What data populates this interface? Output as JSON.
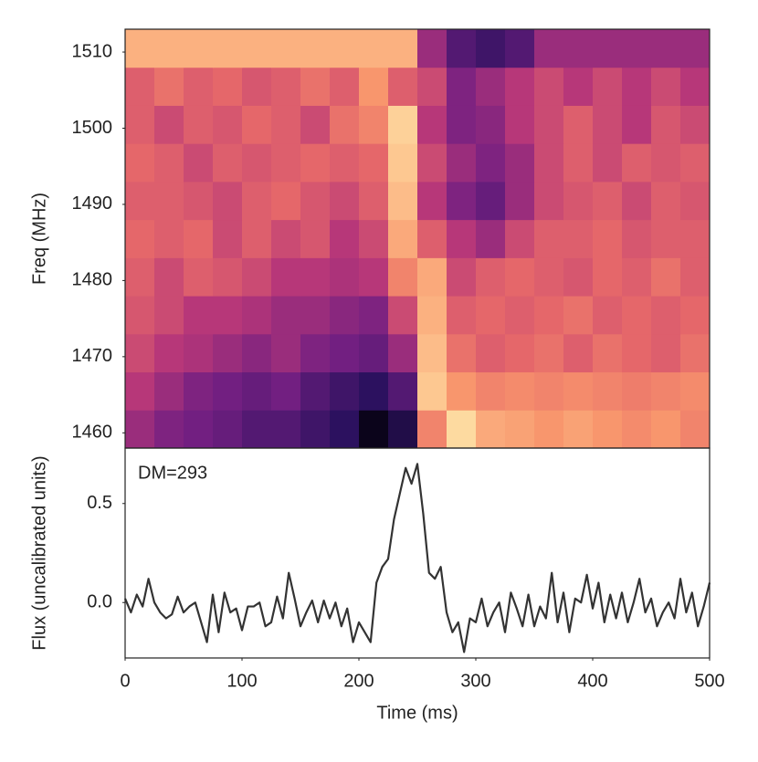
{
  "chart_data": [
    {
      "type": "heatmap",
      "ylabel": "Freq (MHz)",
      "x_bins": [
        0,
        25,
        50,
        75,
        100,
        125,
        150,
        175,
        200,
        225,
        250,
        275,
        300,
        325,
        350,
        375,
        400,
        425,
        450,
        475,
        500
      ],
      "y_bins": [
        1458,
        1463,
        1468,
        1473,
        1478,
        1483,
        1488,
        1493,
        1498,
        1503,
        1508,
        1513
      ],
      "z": [
        [
          0.45,
          0.4,
          0.38,
          0.35,
          0.3,
          0.3,
          0.25,
          0.2,
          0.05,
          0.15,
          0.7,
          0.92,
          0.8,
          0.78,
          0.75,
          0.78,
          0.75,
          0.72,
          0.75,
          0.7
        ],
        [
          0.5,
          0.45,
          0.4,
          0.38,
          0.35,
          0.38,
          0.3,
          0.25,
          0.2,
          0.3,
          0.88,
          0.75,
          0.7,
          0.72,
          0.7,
          0.72,
          0.7,
          0.68,
          0.7,
          0.72
        ],
        [
          0.55,
          0.5,
          0.48,
          0.45,
          0.42,
          0.45,
          0.4,
          0.38,
          0.35,
          0.45,
          0.85,
          0.65,
          0.6,
          0.62,
          0.65,
          0.6,
          0.65,
          0.62,
          0.6,
          0.65
        ],
        [
          0.58,
          0.55,
          0.5,
          0.5,
          0.48,
          0.45,
          0.45,
          0.42,
          0.4,
          0.55,
          0.82,
          0.6,
          0.62,
          0.6,
          0.62,
          0.65,
          0.6,
          0.62,
          0.6,
          0.62
        ],
        [
          0.6,
          0.55,
          0.6,
          0.58,
          0.55,
          0.5,
          0.5,
          0.48,
          0.5,
          0.7,
          0.8,
          0.55,
          0.6,
          0.62,
          0.6,
          0.58,
          0.62,
          0.6,
          0.65,
          0.6
        ],
        [
          0.62,
          0.6,
          0.62,
          0.55,
          0.6,
          0.55,
          0.58,
          0.5,
          0.55,
          0.8,
          0.6,
          0.5,
          0.45,
          0.55,
          0.6,
          0.6,
          0.62,
          0.58,
          0.6,
          0.6
        ],
        [
          0.6,
          0.6,
          0.58,
          0.55,
          0.6,
          0.62,
          0.58,
          0.55,
          0.6,
          0.85,
          0.5,
          0.4,
          0.35,
          0.45,
          0.55,
          0.58,
          0.6,
          0.55,
          0.6,
          0.58
        ],
        [
          0.62,
          0.6,
          0.55,
          0.6,
          0.58,
          0.6,
          0.62,
          0.6,
          0.62,
          0.88,
          0.55,
          0.45,
          0.4,
          0.45,
          0.55,
          0.6,
          0.55,
          0.6,
          0.58,
          0.6
        ],
        [
          0.6,
          0.55,
          0.6,
          0.58,
          0.62,
          0.6,
          0.55,
          0.65,
          0.7,
          0.9,
          0.5,
          0.4,
          0.42,
          0.5,
          0.55,
          0.6,
          0.55,
          0.5,
          0.58,
          0.55
        ],
        [
          0.6,
          0.65,
          0.6,
          0.62,
          0.58,
          0.6,
          0.65,
          0.6,
          0.75,
          0.6,
          0.55,
          0.4,
          0.45,
          0.5,
          0.55,
          0.5,
          0.55,
          0.5,
          0.55,
          0.5
        ],
        [
          0.82,
          0.82,
          0.82,
          0.82,
          0.82,
          0.82,
          0.82,
          0.82,
          0.82,
          0.82,
          0.45,
          0.3,
          0.25,
          0.3,
          0.45,
          0.45,
          0.45,
          0.45,
          0.45,
          0.45
        ]
      ],
      "colorscale": [
        [
          0,
          "#000004"
        ],
        [
          0.2,
          "#2c115f"
        ],
        [
          0.38,
          "#721f81"
        ],
        [
          0.5,
          "#b73779"
        ],
        [
          0.62,
          "#e5676a"
        ],
        [
          0.75,
          "#f8966d"
        ],
        [
          0.88,
          "#fdc891"
        ],
        [
          1,
          "#fcfdbf"
        ]
      ],
      "xlim": [
        0,
        500
      ],
      "ylim": [
        1458,
        1513
      ],
      "yticks": [
        1460,
        1470,
        1480,
        1490,
        1500,
        1510
      ]
    },
    {
      "type": "line",
      "ylabel": "Flux (uncalibrated units)",
      "xlabel": "Time (ms)",
      "annotation": "DM=293",
      "color": "#333333",
      "x": [
        0,
        5,
        10,
        15,
        20,
        25,
        30,
        35,
        40,
        45,
        50,
        55,
        60,
        65,
        70,
        75,
        80,
        85,
        90,
        95,
        100,
        105,
        110,
        115,
        120,
        125,
        130,
        135,
        140,
        145,
        150,
        155,
        160,
        165,
        170,
        175,
        180,
        185,
        190,
        195,
        200,
        205,
        210,
        215,
        220,
        225,
        230,
        235,
        240,
        245,
        250,
        255,
        260,
        265,
        270,
        275,
        280,
        285,
        290,
        295,
        300,
        305,
        310,
        315,
        320,
        325,
        330,
        335,
        340,
        345,
        350,
        355,
        360,
        365,
        370,
        375,
        380,
        385,
        390,
        395,
        400,
        405,
        410,
        415,
        420,
        425,
        430,
        435,
        440,
        445,
        450,
        455,
        460,
        465,
        470,
        475,
        480,
        485,
        490,
        495,
        500
      ],
      "values": [
        0.02,
        -0.05,
        0.04,
        -0.02,
        0.12,
        0.0,
        -0.05,
        -0.08,
        -0.06,
        0.03,
        -0.05,
        -0.02,
        0.0,
        -0.1,
        -0.2,
        0.04,
        -0.15,
        0.05,
        -0.05,
        -0.03,
        -0.14,
        -0.02,
        -0.02,
        0.0,
        -0.12,
        -0.1,
        0.03,
        -0.08,
        0.15,
        0.02,
        -0.12,
        -0.05,
        0.01,
        -0.1,
        0.01,
        -0.08,
        0.0,
        -0.12,
        -0.03,
        -0.2,
        -0.1,
        -0.15,
        -0.2,
        0.1,
        0.18,
        0.22,
        0.42,
        0.55,
        0.68,
        0.6,
        0.7,
        0.45,
        0.15,
        0.12,
        0.18,
        -0.05,
        -0.15,
        -0.1,
        -0.25,
        -0.08,
        -0.1,
        0.02,
        -0.12,
        -0.05,
        0.0,
        -0.15,
        0.05,
        -0.03,
        -0.12,
        0.04,
        -0.12,
        -0.02,
        -0.08,
        0.15,
        -0.1,
        0.05,
        -0.15,
        0.02,
        0.0,
        0.14,
        -0.03,
        0.1,
        -0.1,
        0.04,
        -0.08,
        0.05,
        -0.1,
        0.0,
        0.12,
        -0.05,
        0.02,
        -0.12,
        -0.05,
        0.0,
        -0.08,
        0.12,
        -0.05,
        0.05,
        -0.12,
        -0.02,
        0.1
      ],
      "xlim": [
        0,
        500
      ],
      "ylim": [
        -0.28,
        0.78
      ],
      "yticks": [
        {
          "value": 0,
          "label": "0.0"
        },
        0.5
      ],
      "xticks": [
        0,
        100,
        200,
        300,
        400,
        500
      ]
    }
  ]
}
